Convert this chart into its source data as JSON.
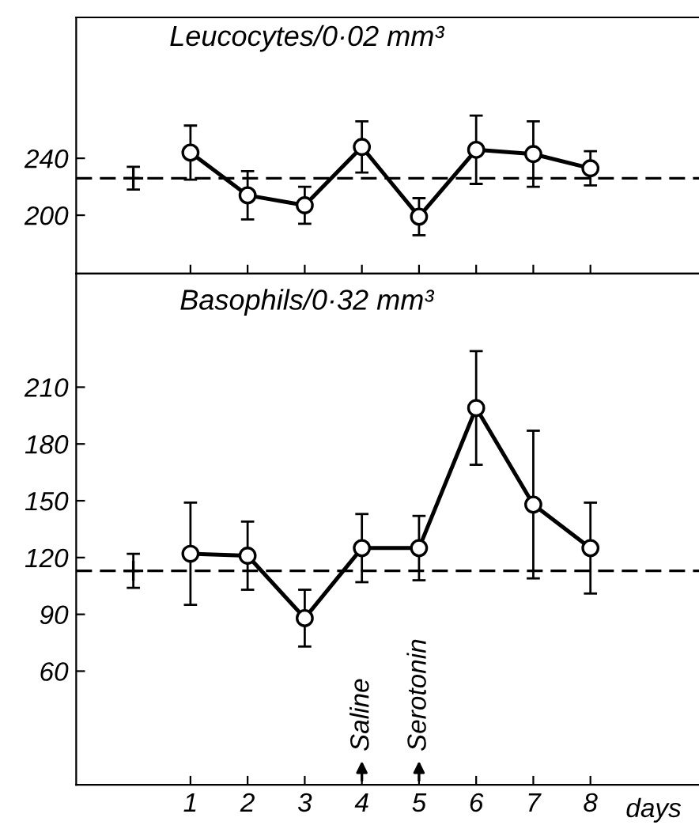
{
  "chart_data": [
    {
      "type": "line",
      "title": "Leucocytes/0·02 mm³",
      "xlim": [
        -1,
        9.9
      ],
      "xticks": [
        1,
        2,
        3,
        4,
        5,
        6,
        7,
        8
      ],
      "ylim": [
        159,
        339
      ],
      "yticks": [
        200,
        240
      ],
      "tick_labels": "y",
      "grid": false,
      "legend": false,
      "marker": "circle",
      "line_style": "solid",
      "ref_lines": [
        {
          "axis": "y",
          "value": 226,
          "color": "#000000",
          "line_style": "dashed"
        }
      ],
      "series": [
        {
          "type": "scatter",
          "marker": "cross",
          "color": "#000000",
          "x": [
            0
          ],
          "values": [
            226
          ],
          "errors": [
            8
          ]
        },
        {
          "color": "#000000",
          "x": [
            1,
            2,
            3,
            4,
            5,
            6,
            7,
            8
          ],
          "values": [
            244,
            214,
            207,
            248,
            199,
            246,
            243,
            233
          ],
          "errors": [
            19,
            17,
            13,
            18,
            13,
            24,
            23,
            12
          ]
        }
      ]
    },
    {
      "type": "line",
      "title": "Basophils/0·32 mm³",
      "xlabel": "days",
      "xlim": [
        -1,
        9.9
      ],
      "xticks": [
        1,
        2,
        3,
        4,
        5,
        6,
        7,
        8
      ],
      "ylim": [
        0,
        270
      ],
      "yticks": [
        60,
        90,
        120,
        150,
        180,
        210
      ],
      "grid": false,
      "legend": false,
      "marker": "circle",
      "line_style": "solid",
      "ref_lines": [
        {
          "axis": "y",
          "value": 113,
          "color": "#000000",
          "line_style": "dashed"
        }
      ],
      "annotations": [
        {
          "text": "Saline",
          "x": 4
        },
        {
          "text": "Serotonin",
          "x": 5
        }
      ],
      "series": [
        {
          "type": "scatter",
          "marker": "cross",
          "color": "#000000",
          "x": [
            0
          ],
          "values": [
            113
          ],
          "errors": [
            9
          ]
        },
        {
          "color": "#000000",
          "x": [
            1,
            2,
            3,
            4,
            5,
            6,
            7,
            8
          ],
          "values": [
            122,
            121,
            88,
            125,
            125,
            199,
            148,
            125
          ],
          "errors": [
            27,
            18,
            15,
            18,
            17,
            30,
            39,
            24
          ]
        }
      ]
    }
  ]
}
